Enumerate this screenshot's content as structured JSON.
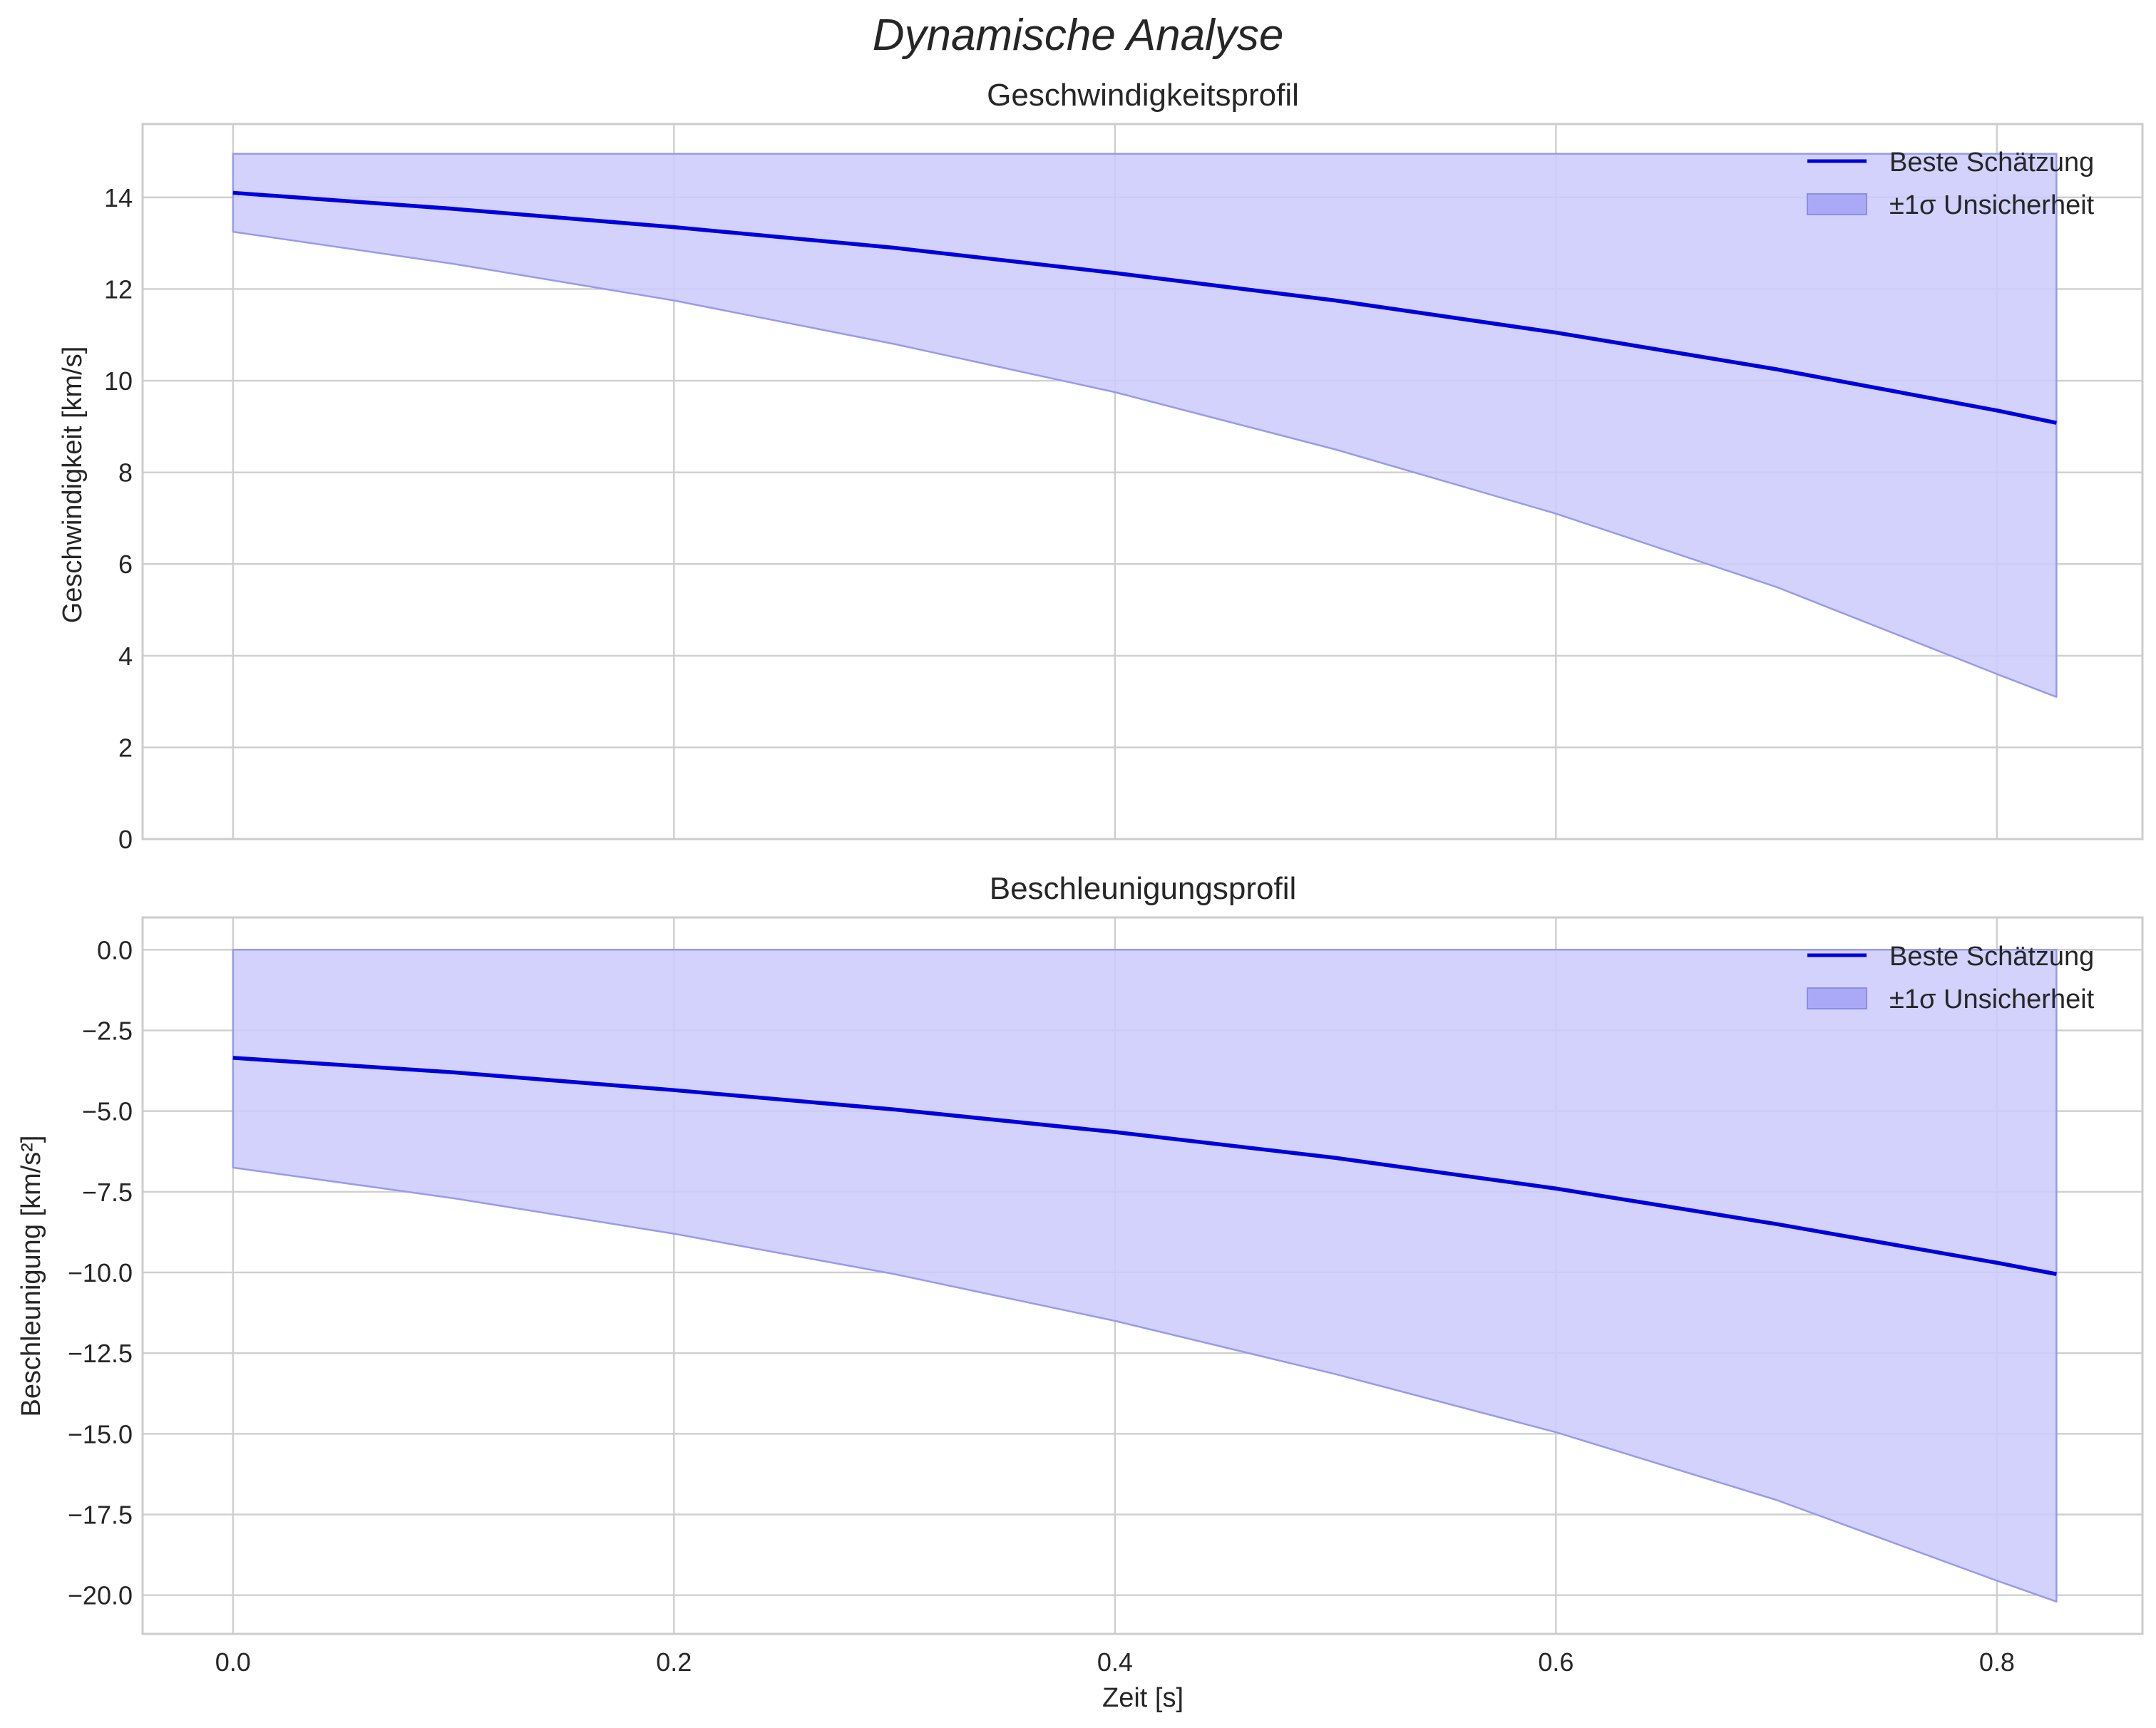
{
  "chart_data": {
    "title": "Dynamische Analyse",
    "xlabel": "Zeit [s]",
    "xlim": [
      -0.041,
      0.866
    ],
    "x_ticks": [
      0.0,
      0.2,
      0.4,
      0.6,
      0.8
    ],
    "x_tick_labels": [
      "0.0",
      "0.2",
      "0.4",
      "0.6",
      "0.8"
    ],
    "colors": {
      "line": "#0000dd",
      "band": "#ccccfc",
      "band_edge": "#9999ee",
      "grid": "#cfcfcf"
    },
    "legend": {
      "placement": "top-right",
      "line_label": "Beste Schätzung",
      "band_label": "±1σ Unsicherheit"
    },
    "panels": [
      {
        "type": "line",
        "title": "Geschwindigkeitsprofil",
        "ylabel": "Geschwindigkeit [km/s]",
        "ylim": [
          0,
          15.6
        ],
        "y_ticks": [
          0,
          2,
          4,
          6,
          8,
          10,
          12,
          14
        ],
        "y_tick_labels": [
          "0",
          "2",
          "4",
          "6",
          "8",
          "10",
          "12",
          "14"
        ],
        "x": [
          0.0,
          0.1,
          0.2,
          0.3,
          0.4,
          0.5,
          0.6,
          0.7,
          0.8,
          0.827
        ],
        "series": [
          {
            "name": "Beste Schätzung",
            "values": [
              14.1,
              13.75,
              13.35,
              12.9,
              12.35,
              11.75,
              11.05,
              10.25,
              9.35,
              9.08
            ]
          },
          {
            "name": "±1σ Unsicherheit (unten)",
            "values": [
              13.25,
              12.55,
              11.75,
              10.8,
              9.75,
              8.5,
              7.1,
              5.5,
              3.6,
              3.1
            ]
          },
          {
            "name": "±1σ Unsicherheit (oben)",
            "values": [
              14.95,
              14.95,
              14.95,
              14.95,
              14.95,
              14.95,
              14.95,
              14.95,
              14.95,
              14.95
            ]
          }
        ]
      },
      {
        "type": "line",
        "title": "Beschleunigungsprofil",
        "ylabel": "Beschleunigung [km/s²]",
        "ylim": [
          -21.2,
          1.0
        ],
        "y_ticks": [
          0,
          -2.5,
          -5,
          -7.5,
          -10,
          -12.5,
          -15,
          -17.5,
          -20
        ],
        "y_tick_labels": [
          "0.0",
          "−2.5",
          "−5.0",
          "−7.5",
          "−10.0",
          "−12.5",
          "−15.0",
          "−17.5",
          "−20.0"
        ],
        "x": [
          0.0,
          0.1,
          0.2,
          0.3,
          0.4,
          0.5,
          0.6,
          0.7,
          0.8,
          0.827
        ],
        "series": [
          {
            "name": "Beste Schätzung",
            "values": [
              -3.35,
              -3.8,
              -4.35,
              -4.95,
              -5.65,
              -6.45,
              -7.4,
              -8.5,
              -9.7,
              -10.05
            ]
          },
          {
            "name": "±1σ Unsicherheit (unten)",
            "values": [
              -6.75,
              -7.7,
              -8.8,
              -10.05,
              -11.5,
              -13.15,
              -14.95,
              -17.05,
              -19.55,
              -20.2
            ]
          },
          {
            "name": "±1σ Unsicherheit (oben)",
            "values": [
              0,
              0,
              0,
              0,
              0,
              0,
              0,
              0,
              0,
              0
            ]
          }
        ]
      }
    ]
  }
}
